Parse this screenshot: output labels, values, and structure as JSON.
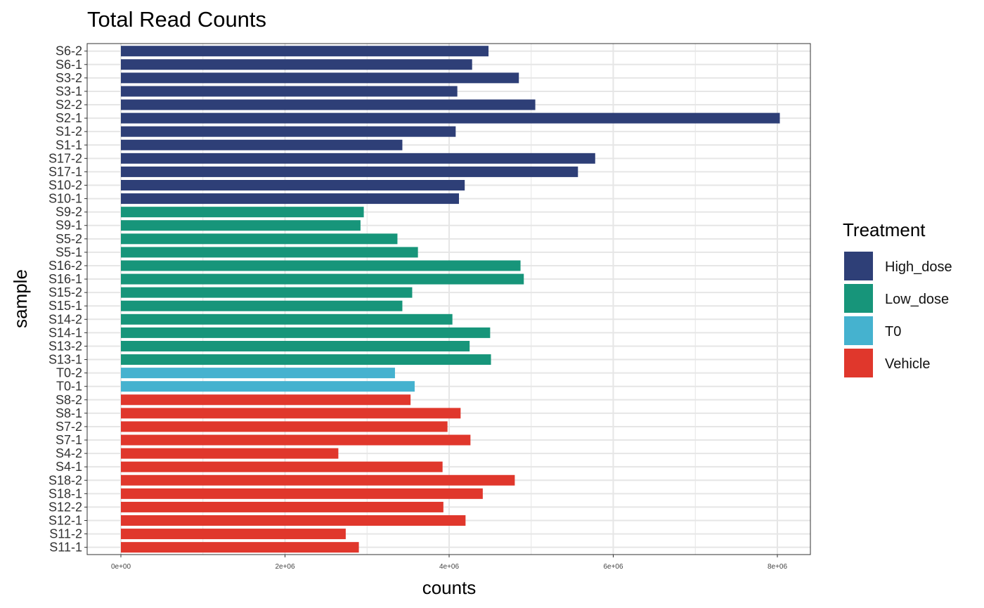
{
  "colors": {
    "High_dose": "#2e3f77",
    "Low_dose": "#17957a",
    "T0": "#45b2cf",
    "Vehicle": "#e0372c",
    "grid": "#e6e6e6",
    "panel_border": "#333333"
  },
  "chart_data": {
    "type": "bar",
    "orientation": "horizontal",
    "title": "Total Read Counts",
    "xlabel": "counts",
    "ylabel": "sample",
    "xlim": [
      0,
      8400000
    ],
    "x_ticks": [
      0,
      2000000,
      4000000,
      6000000,
      8000000
    ],
    "x_tick_labels": [
      "0e+00",
      "2e+06",
      "4e+06",
      "6e+06",
      "8e+06"
    ],
    "grid": true,
    "legend": {
      "title": "Treatment",
      "placement": "right",
      "entries": [
        "High_dose",
        "Low_dose",
        "T0",
        "Vehicle"
      ]
    },
    "categories": [
      "S6-2",
      "S6-1",
      "S3-2",
      "S3-1",
      "S2-2",
      "S2-1",
      "S1-2",
      "S1-1",
      "S17-2",
      "S17-1",
      "S10-2",
      "S10-1",
      "S9-2",
      "S9-1",
      "S5-2",
      "S5-1",
      "S16-2",
      "S16-1",
      "S15-2",
      "S15-1",
      "S14-2",
      "S14-1",
      "S13-2",
      "S13-1",
      "T0-2",
      "T0-1",
      "S8-2",
      "S8-1",
      "S7-2",
      "S7-1",
      "S4-2",
      "S4-1",
      "S18-2",
      "S18-1",
      "S12-2",
      "S12-1",
      "S11-2",
      "S11-1"
    ],
    "values": [
      4480000,
      4280000,
      4850000,
      4100000,
      5050000,
      8030000,
      4080000,
      3430000,
      5780000,
      5570000,
      4190000,
      4120000,
      2960000,
      2920000,
      3370000,
      3620000,
      4870000,
      4910000,
      3550000,
      3430000,
      4040000,
      4500000,
      4250000,
      4510000,
      3340000,
      3580000,
      3530000,
      4140000,
      3980000,
      4260000,
      2650000,
      3920000,
      4800000,
      4410000,
      3930000,
      4200000,
      2740000,
      2900000
    ],
    "treatment": [
      "High_dose",
      "High_dose",
      "High_dose",
      "High_dose",
      "High_dose",
      "High_dose",
      "High_dose",
      "High_dose",
      "High_dose",
      "High_dose",
      "High_dose",
      "High_dose",
      "Low_dose",
      "Low_dose",
      "Low_dose",
      "Low_dose",
      "Low_dose",
      "Low_dose",
      "Low_dose",
      "Low_dose",
      "Low_dose",
      "Low_dose",
      "Low_dose",
      "Low_dose",
      "T0",
      "T0",
      "Vehicle",
      "Vehicle",
      "Vehicle",
      "Vehicle",
      "Vehicle",
      "Vehicle",
      "Vehicle",
      "Vehicle",
      "Vehicle",
      "Vehicle",
      "Vehicle",
      "Vehicle"
    ]
  }
}
